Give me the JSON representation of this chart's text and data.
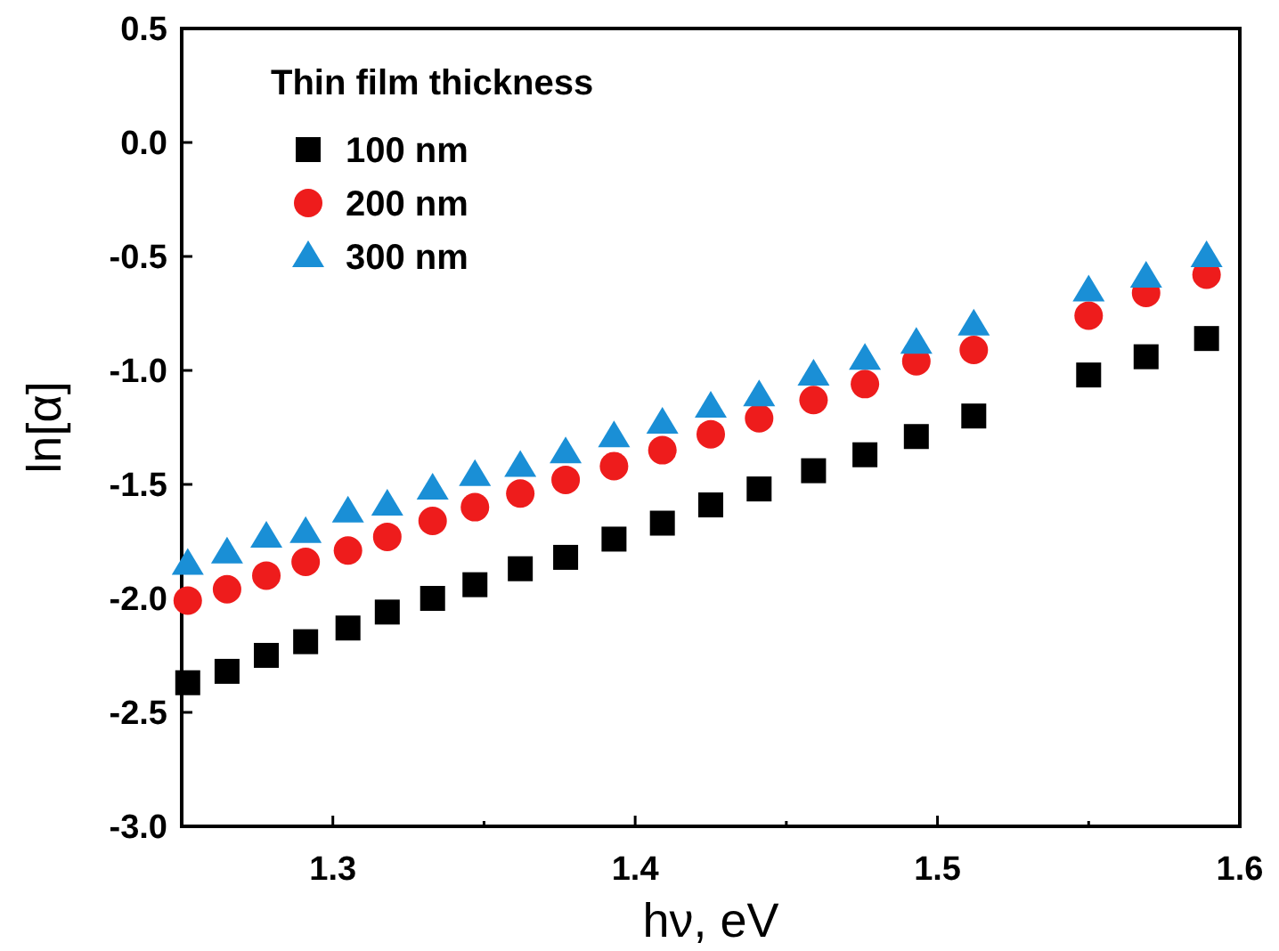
{
  "chart_data": {
    "type": "scatter",
    "xlabel": "hν, eV",
    "ylabel": "ln[α]",
    "legend_title": "Thin film thickness",
    "legend": "top left",
    "x": [
      1.252,
      1.265,
      1.278,
      1.291,
      1.305,
      1.318,
      1.333,
      1.347,
      1.362,
      1.377,
      1.393,
      1.409,
      1.425,
      1.441,
      1.459,
      1.476,
      1.493,
      1.512,
      1.55,
      1.569,
      1.589
    ],
    "series": [
      {
        "name": "100 nm",
        "color": "#000000",
        "marker": "square",
        "values": [
          -2.37,
          -2.32,
          -2.25,
          -2.19,
          -2.13,
          -2.06,
          -2.0,
          -1.94,
          -1.87,
          -1.82,
          -1.74,
          -1.67,
          -1.59,
          -1.52,
          -1.44,
          -1.37,
          -1.29,
          -1.2,
          -1.02,
          -0.94,
          -0.86
        ]
      },
      {
        "name": "200 nm",
        "color": "#ee1c1c",
        "marker": "circle",
        "values": [
          -2.01,
          -1.96,
          -1.9,
          -1.84,
          -1.79,
          -1.73,
          -1.66,
          -1.6,
          -1.54,
          -1.48,
          -1.42,
          -1.35,
          -1.28,
          -1.21,
          -1.13,
          -1.06,
          -0.96,
          -0.91,
          -0.76,
          -0.66,
          -0.58
        ]
      },
      {
        "name": "300 nm",
        "color": "#1a8fd6",
        "marker": "triangle",
        "values": [
          -1.85,
          -1.8,
          -1.73,
          -1.71,
          -1.62,
          -1.59,
          -1.52,
          -1.46,
          -1.42,
          -1.36,
          -1.29,
          -1.23,
          -1.16,
          -1.11,
          -1.02,
          -0.95,
          -0.88,
          -0.8,
          -0.65,
          -0.59,
          -0.5
        ]
      }
    ],
    "xlim": [
      1.25,
      1.6
    ],
    "xticks": [
      1.3,
      1.4,
      1.5,
      1.6
    ],
    "ylim": [
      -3.0,
      0.5
    ],
    "yticks": [
      {
        "value": -3,
        "label": "-3.0"
      },
      -2.5,
      {
        "value": -2,
        "label": "-2.0"
      },
      -1.5,
      {
        "value": -1,
        "label": "-1.0"
      },
      -0.5,
      {
        "value": 0,
        "label": "0.0"
      },
      0.5
    ],
    "grid": false
  }
}
